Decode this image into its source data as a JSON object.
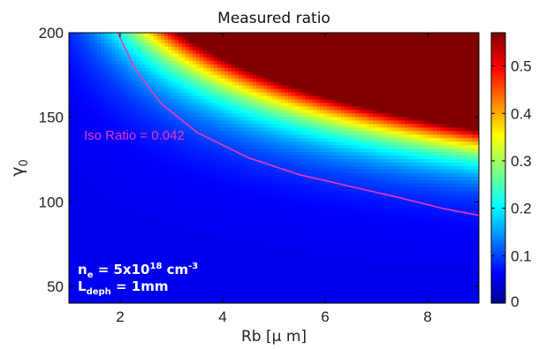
{
  "chart_data": {
    "type": "heatmap",
    "title": "Measured ratio",
    "xlabel": "Rb [μ m]",
    "ylabel": "γ0",
    "xlim": [
      1,
      9
    ],
    "ylim": [
      40,
      200
    ],
    "x_ticks": [
      2,
      4,
      6,
      8
    ],
    "y_ticks": [
      50,
      100,
      150,
      200
    ],
    "colorbar": {
      "range": [
        0,
        0.57
      ],
      "ticks": [
        0,
        0.1,
        0.2,
        0.3,
        0.4,
        0.5
      ],
      "colormap": "jet"
    },
    "contour": {
      "label": "Iso Ratio = 0.042",
      "level": 0.042,
      "color": "#e83ab8",
      "points": [
        {
          "x": 1.95,
          "y": 200
        },
        {
          "x": 2.3,
          "y": 178
        },
        {
          "x": 2.8,
          "y": 158
        },
        {
          "x": 3.5,
          "y": 141
        },
        {
          "x": 4.5,
          "y": 126
        },
        {
          "x": 5.5,
          "y": 116
        },
        {
          "x": 6.5,
          "y": 109
        },
        {
          "x": 7.5,
          "y": 102
        },
        {
          "x": 8.3,
          "y": 96
        },
        {
          "x": 9.0,
          "y": 92
        }
      ]
    },
    "annotation": {
      "ne": {
        "base": "n",
        "sub": "e",
        "value": "= 5x10",
        "exp": "18",
        "unit": " cm",
        "unit_exp": "-3"
      },
      "ldeph": {
        "base": "L",
        "sub": "deph",
        "value": "= 1mm"
      }
    },
    "grid": false,
    "legend": "none"
  },
  "labels": {
    "title": "Measured ratio",
    "xlabel": "Rb [μ m]",
    "ylabel_main": "γ",
    "ylabel_sub": "0",
    "iso": "Iso Ratio = 0.042",
    "x_ticks": [
      "2",
      "4",
      "6",
      "8"
    ],
    "y_ticks": [
      "50",
      "100",
      "150",
      "200"
    ],
    "cb_ticks": [
      "0",
      "0.1",
      "0.2",
      "0.3",
      "0.4",
      "0.5"
    ]
  }
}
